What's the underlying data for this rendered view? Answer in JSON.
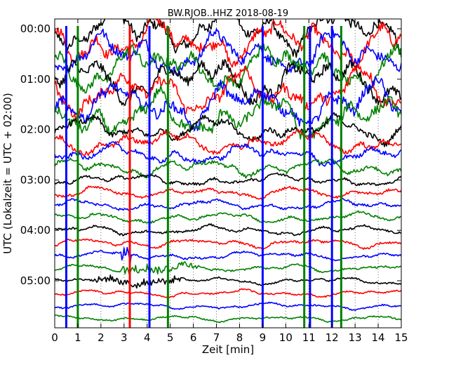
{
  "chart_data": {
    "type": "line",
    "title": "BW.RJOB..HHZ 2018-08-19",
    "xlabel": "Zeit  [min]",
    "ylabel": "UTC (Lokalzeit = UTC + 02:00)",
    "xlim": [
      0,
      15
    ],
    "x_ticks": [
      "0",
      "1",
      "2",
      "3",
      "4",
      "5",
      "6",
      "7",
      "8",
      "9",
      "10",
      "11",
      "12",
      "13",
      "14",
      "15"
    ],
    "y_ticks": [
      "00:00",
      "01:00",
      "02:00",
      "03:00",
      "04:00",
      "05:00"
    ],
    "trace_interval_minutes": 15,
    "trace_count": 24,
    "trace_start": "00:00",
    "color_cycle": [
      "#000000",
      "#ff0000",
      "#0000ff",
      "#008000"
    ],
    "grid": "vertical dotted at each minute",
    "spikes": [
      {
        "x": 0.5,
        "color": "#0000ff"
      },
      {
        "x": 1.0,
        "color": "#008000"
      },
      {
        "x": 3.25,
        "color": "#ff0000"
      },
      {
        "x": 4.1,
        "color": "#0000ff"
      },
      {
        "x": 4.9,
        "color": "#008000"
      },
      {
        "x": 9.0,
        "color": "#0000ff"
      },
      {
        "x": 10.8,
        "color": "#008000"
      },
      {
        "x": 11.05,
        "color": "#0000ff"
      },
      {
        "x": 12.0,
        "color": "#0000ff"
      },
      {
        "x": 12.4,
        "color": "#008000"
      }
    ]
  }
}
